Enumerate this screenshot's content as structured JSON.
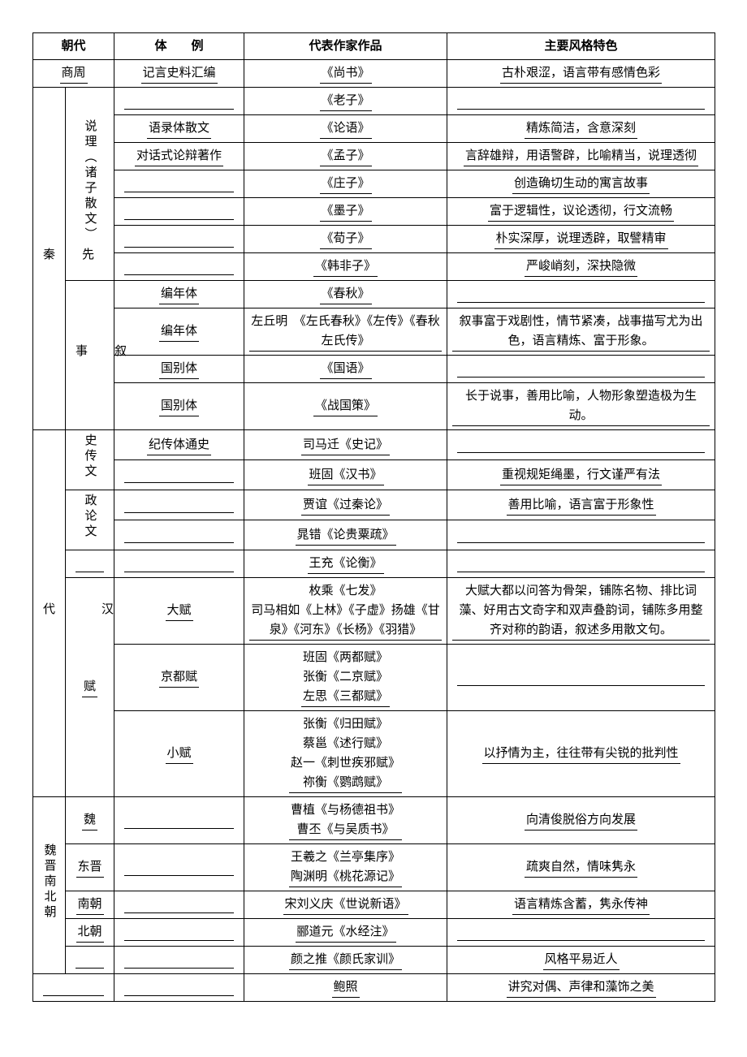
{
  "headers": {
    "dynasty": "朝代",
    "style": "体　　例",
    "works": "代表作家作品",
    "features": "主要风格特色"
  },
  "rows": {
    "shangzhou": {
      "dynasty": "商周",
      "style": "记言史料汇编",
      "works": "《尚书》",
      "features": "古朴艰涩，语言带有感情色彩"
    },
    "xianqin_label": "先\n\n秦",
    "shuoli_label": "说理︵诸子散文︶",
    "xushi_label": "叙\n\n事",
    "laozi": {
      "style": "",
      "works": "《老子》",
      "features": ""
    },
    "lunyu": {
      "style": "语录体散文",
      "works": "《论语》",
      "features": "精炼简洁，含意深刻"
    },
    "mengzi": {
      "style": "对话式论辩著作",
      "works": "《孟子》",
      "features": "言辞雄辩，用语警辟，比喻精当，说理透彻"
    },
    "zhuangzi": {
      "style": "",
      "works": "《庄子》",
      "features": "创造确切生动的寓言故事"
    },
    "mozi": {
      "style": "",
      "works": "《墨子》",
      "features": "富于逻辑性，议论透彻，行文流畅"
    },
    "xunzi": {
      "style": "",
      "works": "《荀子》",
      "features": "朴实深厚，说理透辟，取譬精审"
    },
    "hanfeizi": {
      "style": "",
      "works": "《韩非子》",
      "features": "严峻峭刻，深抉隐微"
    },
    "chunqiu": {
      "style": "编年体",
      "works": "《春秋》",
      "features": ""
    },
    "zuozhuan": {
      "style": "编年体",
      "works": "左丘明　《左氏春秋》《左传》《春秋左氏传》",
      "features": "叙事富于戏剧性，情节紧凑，战事描写尤为出色，语言精炼、富于形象。"
    },
    "guoyu": {
      "style": "国别体",
      "works": "《国语》",
      "features": ""
    },
    "zhanguoce": {
      "style": "国别体",
      "works": "《战国策》",
      "features": "长于说事，善用比喻，人物形象塑造极为生动。"
    },
    "han_label": "汉\n\n\n代",
    "shizhuanwen": "史传文",
    "zhenglunwen": "政论文",
    "fu_label": "赋",
    "shiji": {
      "style": "纪传体通史",
      "works": "司马迁《史记》",
      "features": ""
    },
    "hanshu": {
      "style": "",
      "works": "班固《汉书》",
      "features": "重视规矩绳墨，行文谨严有法"
    },
    "guoqin": {
      "style": "",
      "works": "贾谊《过秦论》",
      "features": "善用比喻，语言富于形象性"
    },
    "lungui": {
      "style": "",
      "works": "晁错《论贵粟疏》",
      "features": ""
    },
    "lunheng": {
      "style": "",
      "works": "王充《论衡》",
      "features": ""
    },
    "dafu": {
      "style": "大赋",
      "works": "枚乘《七发》\n司马相如《上林》《子虚》扬雄《甘泉》《河东》《长杨》《羽猎》",
      "features": "大赋大都以问答为骨架，铺陈名物、排比词藻、好用古文奇字和双声叠韵词，铺陈多用整齐对称的韵语，叙述多用散文句。"
    },
    "jingdufu": {
      "style": "京都赋",
      "works": "班固《两都赋》\n张衡《二京赋》\n左思《三都赋》",
      "features": ""
    },
    "xiaofu": {
      "style": "小赋",
      "works": "张衡《归田赋》\n蔡邕《述行赋》\n赵一《刺世疾邪赋》\n祢衡《鹦鹉赋》",
      "features": "以抒情为主，往往带有尖锐的批判性"
    },
    "weijin_label": "魏晋南北朝",
    "wei": {
      "sub": "魏",
      "works": "曹植《与杨德祖书》\n曹丕《与吴质书》",
      "features": "向清俊脱俗方向发展"
    },
    "dongjin": {
      "sub": "东晋",
      "works": "王羲之《兰亭集序》\n陶渊明《桃花源记》",
      "features": "疏爽自然，情味隽永"
    },
    "nanchao": {
      "sub": "南朝",
      "works": "宋刘义庆《世说新语》",
      "features": "语言精炼含蓄，隽永传神"
    },
    "beichao": {
      "sub": "北朝",
      "works": "郦道元《水经注》",
      "features": ""
    },
    "yanshi": {
      "works": "颜之推《颜氏家训》",
      "features": "风格平易近人"
    },
    "baozhao": {
      "works": "鲍照",
      "features": "讲究对偶、声律和藻饰之美"
    }
  }
}
